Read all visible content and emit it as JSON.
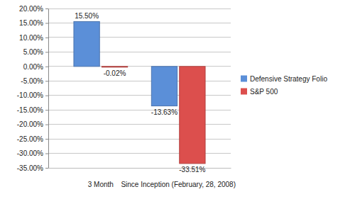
{
  "chart_data": {
    "type": "bar",
    "categories": [
      "3 Month",
      "Since Inception (February, 28, 2008)"
    ],
    "series": [
      {
        "name": "Defensive Strategy Folio",
        "color": "#5b8fd8",
        "values": [
          15.5,
          -13.63
        ],
        "value_labels": [
          "15.50%",
          "-13.63%"
        ]
      },
      {
        "name": "S&P 500",
        "color": "#dc4f4d",
        "values": [
          -0.02,
          -33.51
        ],
        "value_labels": [
          "-0.02%",
          "-33.51%"
        ]
      }
    ],
    "ylim": [
      -35,
      20
    ],
    "yticks": [
      {
        "value": 20,
        "label": "20.00%"
      },
      {
        "value": 15,
        "label": "15.00%"
      },
      {
        "value": 10,
        "label": "10.00%"
      },
      {
        "value": 5,
        "label": "5.00%"
      },
      {
        "value": 0,
        "label": "0.00%"
      },
      {
        "value": -5,
        "label": "-5.00%"
      },
      {
        "value": -10,
        "label": "-10.00%"
      },
      {
        "value": -15,
        "label": "-15.00%"
      },
      {
        "value": -20,
        "label": "-20.00%"
      },
      {
        "value": -25,
        "label": "-25.00%"
      },
      {
        "value": -30,
        "label": "-30.00%"
      },
      {
        "value": -35,
        "label": "-35.00%"
      }
    ],
    "grid": true,
    "legend": "right",
    "data_labels": true
  }
}
